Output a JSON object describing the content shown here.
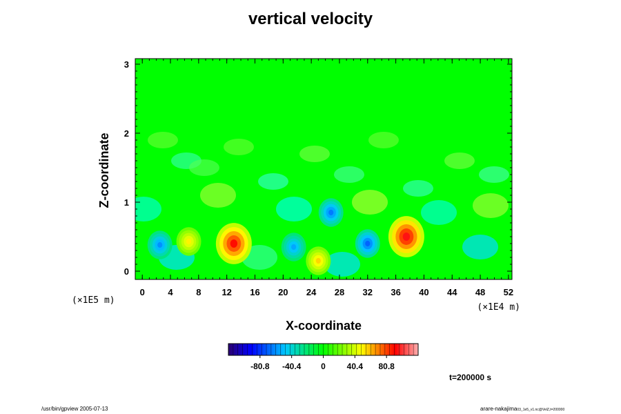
{
  "chart_data": {
    "type": "heatmap",
    "title": "vertical velocity",
    "xlabel": "X-coordinate",
    "ylabel": "Z-coordinate",
    "x_scale_note": "(×1E4 m)",
    "z_scale_note": "(×1E5 m)",
    "xlim": [
      -1,
      52.5
    ],
    "ylim": [
      -0.12,
      3.08
    ],
    "x_ticks": [
      "0",
      "4",
      "8",
      "12",
      "16",
      "20",
      "24",
      "28",
      "32",
      "36",
      "40",
      "44",
      "48",
      "52"
    ],
    "y_ticks": [
      "0",
      "1",
      "2",
      "3"
    ],
    "colorbar": {
      "range": [
        -121.2,
        121.2
      ],
      "tick_labels": [
        "-80.8",
        "-40.4",
        "0",
        "40.4",
        "80.8"
      ],
      "tick_values": [
        -80.8,
        -40.4,
        0,
        40.4,
        80.8
      ]
    },
    "features": [
      {
        "kind": "downdraft",
        "x": 2.5,
        "z": 0.38,
        "value": -60
      },
      {
        "kind": "updraft",
        "x": 6.6,
        "z": 0.43,
        "value": 50
      },
      {
        "kind": "updraft",
        "x": 13,
        "z": 0.4,
        "value": 90
      },
      {
        "kind": "downdraft",
        "x": 21.5,
        "z": 0.35,
        "value": -55
      },
      {
        "kind": "updraft",
        "x": 25,
        "z": 0.15,
        "value": 55
      },
      {
        "kind": "downdraft",
        "x": 26.8,
        "z": 0.85,
        "value": -65
      },
      {
        "kind": "downdraft",
        "x": 32,
        "z": 0.4,
        "value": -70
      },
      {
        "kind": "updraft",
        "x": 37.5,
        "z": 0.5,
        "value": 95
      }
    ]
  },
  "annotations": {
    "time": "t=200000 s",
    "footer_left": "/usr/bin/gpview 2005-07-13",
    "footer_right_main": "arare-nakajima",
    "footer_right_small": "03_1e5_v1.nc@VelZ,t=200000"
  }
}
